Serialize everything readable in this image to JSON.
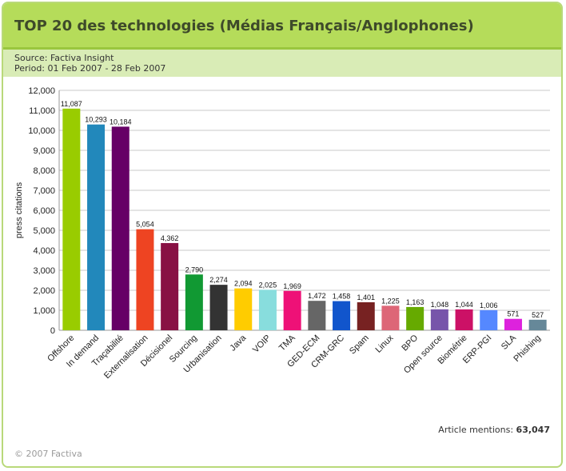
{
  "header": {
    "title": "TOP 20 des technologies (Médias Français/Anglophones)",
    "source": "Source: Factiva Insight",
    "period": "Period: 01 Feb 2007 - 28 Feb 2007"
  },
  "footer": {
    "total_label": "Article mentions:",
    "total_value": "63,047",
    "copyright": "© 2007 Factiva"
  },
  "chart_data": {
    "type": "bar",
    "title": "",
    "xlabel": "",
    "ylabel": "press citations",
    "ylim": [
      0,
      12000
    ],
    "ytick_step": 1000,
    "grid": true,
    "categories": [
      "Offshore",
      "In demand",
      "Traçabilité",
      "Externalisation",
      "Décisionel",
      "Sourcing",
      "Urbanisation",
      "Java",
      "VOIP",
      "TMA",
      "GED-ECM",
      "CRM-GRC",
      "Spam",
      "Linux",
      "BPO",
      "Open source",
      "Biométrie",
      "ERP-PGI",
      "SLA",
      "Phishing"
    ],
    "values": [
      11087,
      10293,
      10184,
      5054,
      4362,
      2790,
      2274,
      2094,
      2025,
      1969,
      1472,
      1458,
      1401,
      1225,
      1163,
      1048,
      1044,
      1006,
      571,
      527
    ],
    "value_labels": [
      "11,087",
      "10,293",
      "10,184",
      "5,054",
      "4,362",
      "2,790",
      "2,274",
      "2,094",
      "2,025",
      "1,969",
      "1,472",
      "1,458",
      "1,401",
      "1,225",
      "1,163",
      "1,048",
      "1,044",
      "1,006",
      "571",
      "527"
    ],
    "colors": [
      "#99cc00",
      "#2288bb",
      "#660066",
      "#ee4422",
      "#881144",
      "#119933",
      "#333333",
      "#ffcc00",
      "#88dddd",
      "#ee1177",
      "#666666",
      "#1155cc",
      "#772222",
      "#dd6677",
      "#66aa00",
      "#7755aa",
      "#cc1166",
      "#5588ff",
      "#dd22dd",
      "#668899"
    ]
  }
}
